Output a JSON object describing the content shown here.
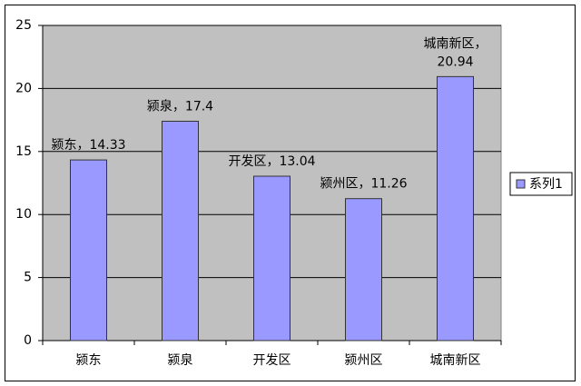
{
  "chart_data": {
    "type": "bar",
    "categories": [
      "颍东",
      "颍泉",
      "开发区",
      "颍州区",
      "城南新区"
    ],
    "series": [
      {
        "name": "系列1",
        "color": "#9999ff",
        "values": [
          14.33,
          17.4,
          13.04,
          11.26,
          20.94
        ],
        "value_labels": [
          "颍东，14.33",
          "颍泉，17.4",
          "开发区，13.04",
          "颍州区，11.26",
          "城南新区，20.94"
        ]
      }
    ],
    "ylim": [
      0,
      25
    ],
    "yticks": [
      0,
      5,
      10,
      15,
      20,
      25
    ],
    "grid": true,
    "plot_background": "#c0c0c0",
    "legend": "right"
  }
}
